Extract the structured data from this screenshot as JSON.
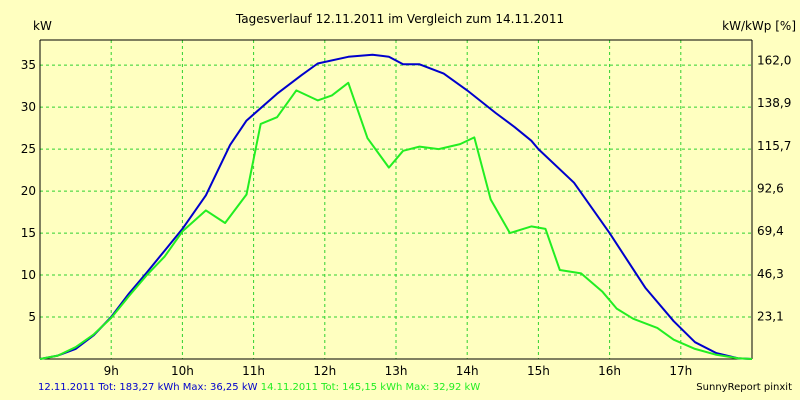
{
  "colors": {
    "background": "#ffffc0",
    "plot_background": "#ffffc0",
    "grid": "#2fd12f",
    "axis": "#000000",
    "blue_series": "#0000cc",
    "green_series": "#22ee22",
    "text": "#000000"
  },
  "footer": {
    "blue_summary": "12.11.2011 Tot: 183,27 kWh Max: 36,25 kW",
    "green_summary": "14.11.2011 Tot: 145,15 kWh Max: 32,92 kW",
    "credit": "SunnyReport pinxit"
  },
  "chart_data": {
    "type": "line",
    "title": "Tagesverlauf 12.11.2011 im Vergleich zum 14.11.2011",
    "ylabel_left": "kW",
    "ylabel_right": "kW/kWp [%]",
    "xlim": [
      8.0,
      18.0
    ],
    "ylim": [
      0,
      38
    ],
    "x_ticks": [
      {
        "x": 9,
        "label": "9h"
      },
      {
        "x": 10,
        "label": "10h"
      },
      {
        "x": 11,
        "label": "11h"
      },
      {
        "x": 12,
        "label": "12h"
      },
      {
        "x": 13,
        "label": "13h"
      },
      {
        "x": 14,
        "label": "14h"
      },
      {
        "x": 15,
        "label": "15h"
      },
      {
        "x": 16,
        "label": "16h"
      },
      {
        "x": 17,
        "label": "17h"
      }
    ],
    "y_ticks_left": [
      {
        "y": 5,
        "label": "5"
      },
      {
        "y": 10,
        "label": "10"
      },
      {
        "y": 15,
        "label": "15"
      },
      {
        "y": 20,
        "label": "20"
      },
      {
        "y": 25,
        "label": "25"
      },
      {
        "y": 30,
        "label": "30"
      },
      {
        "y": 35,
        "label": "35"
      }
    ],
    "y_ticks_right": [
      {
        "y": 5.077,
        "label": "23,1"
      },
      {
        "y": 10.155,
        "label": "46,3"
      },
      {
        "y": 15.23,
        "label": "69,4"
      },
      {
        "y": 20.31,
        "label": "92,6"
      },
      {
        "y": 25.39,
        "label": "115,7"
      },
      {
        "y": 30.47,
        "label": "138,9"
      },
      {
        "y": 35.54,
        "label": "162,0"
      }
    ],
    "grid": true,
    "series": [
      {
        "name": "12.11.2011",
        "color": "#0000cc",
        "points": [
          [
            8.0,
            0.0
          ],
          [
            8.25,
            0.4
          ],
          [
            8.5,
            1.2
          ],
          [
            8.75,
            2.8
          ],
          [
            9.0,
            5.0
          ],
          [
            9.25,
            7.8
          ],
          [
            9.5,
            10.3
          ],
          [
            9.75,
            12.9
          ],
          [
            10.0,
            15.5
          ],
          [
            10.33,
            19.5
          ],
          [
            10.67,
            25.5
          ],
          [
            10.9,
            28.4
          ],
          [
            11.33,
            31.6
          ],
          [
            11.67,
            33.8
          ],
          [
            11.9,
            35.2
          ],
          [
            12.33,
            36.0
          ],
          [
            12.67,
            36.25
          ],
          [
            12.9,
            36.0
          ],
          [
            13.1,
            35.1
          ],
          [
            13.33,
            35.1
          ],
          [
            13.67,
            34.0
          ],
          [
            14.0,
            32.0
          ],
          [
            14.4,
            29.3
          ],
          [
            14.67,
            27.6
          ],
          [
            14.9,
            26.0
          ],
          [
            15.0,
            25.0
          ],
          [
            15.5,
            21.0
          ],
          [
            16.0,
            15.0
          ],
          [
            16.5,
            8.5
          ],
          [
            16.9,
            4.5
          ],
          [
            17.2,
            2.0
          ],
          [
            17.5,
            0.7
          ],
          [
            17.8,
            0.1
          ],
          [
            18.0,
            0.0
          ]
        ]
      },
      {
        "name": "14.11.2011",
        "color": "#22ee22",
        "points": [
          [
            8.0,
            0.0
          ],
          [
            8.25,
            0.4
          ],
          [
            8.5,
            1.4
          ],
          [
            8.75,
            2.9
          ],
          [
            9.0,
            4.9
          ],
          [
            9.25,
            7.5
          ],
          [
            9.5,
            10.0
          ],
          [
            9.75,
            12.2
          ],
          [
            10.0,
            15.2
          ],
          [
            10.33,
            17.7
          ],
          [
            10.6,
            16.2
          ],
          [
            10.9,
            19.6
          ],
          [
            11.1,
            28.0
          ],
          [
            11.33,
            28.8
          ],
          [
            11.6,
            32.0
          ],
          [
            11.9,
            30.8
          ],
          [
            12.1,
            31.4
          ],
          [
            12.33,
            32.9
          ],
          [
            12.6,
            26.3
          ],
          [
            12.9,
            22.8
          ],
          [
            13.1,
            24.8
          ],
          [
            13.33,
            25.3
          ],
          [
            13.6,
            25.0
          ],
          [
            13.9,
            25.6
          ],
          [
            14.1,
            26.4
          ],
          [
            14.33,
            19.0
          ],
          [
            14.6,
            15.0
          ],
          [
            14.9,
            15.8
          ],
          [
            15.1,
            15.5
          ],
          [
            15.3,
            10.6
          ],
          [
            15.6,
            10.2
          ],
          [
            15.9,
            8.0
          ],
          [
            16.1,
            6.0
          ],
          [
            16.33,
            4.8
          ],
          [
            16.67,
            3.7
          ],
          [
            16.9,
            2.3
          ],
          [
            17.2,
            1.2
          ],
          [
            17.5,
            0.5
          ],
          [
            17.8,
            0.1
          ],
          [
            18.0,
            0.0
          ]
        ]
      }
    ]
  }
}
